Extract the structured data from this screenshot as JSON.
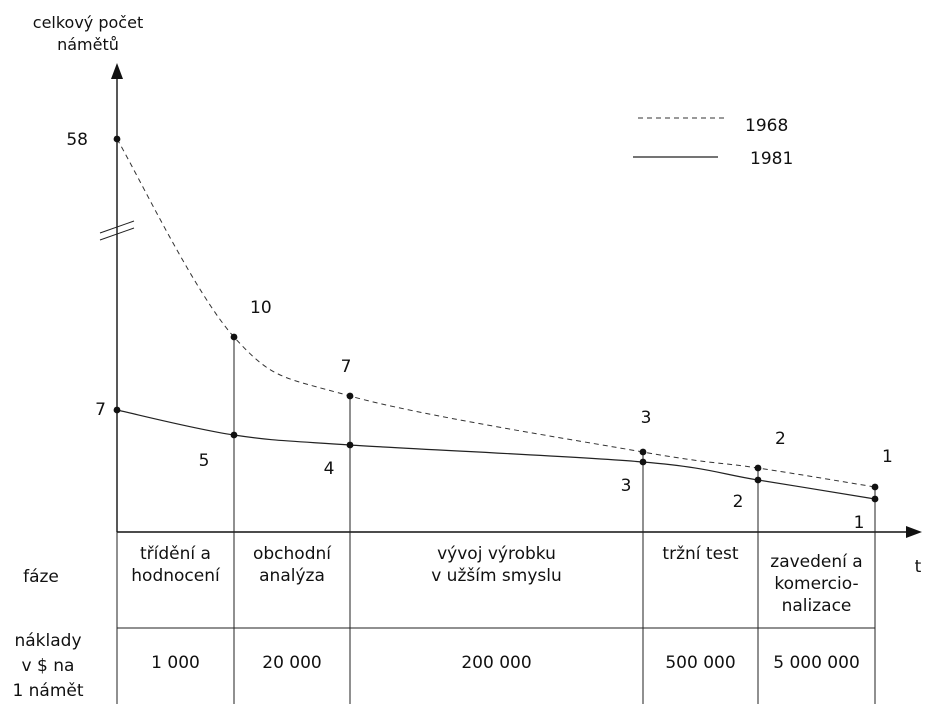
{
  "chart_data": {
    "type": "line",
    "ylabel_lines": [
      "celkový počet",
      "námětů"
    ],
    "xlabel": "t",
    "phase_row_label": "fáze",
    "cost_row_label_lines": [
      "náklady",
      "v $ na",
      "1 námět"
    ],
    "phases": [
      {
        "label_lines": [
          "třídění a",
          "hodnocení"
        ],
        "cost": "1 000"
      },
      {
        "label_lines": [
          "obchodní",
          "analýza"
        ],
        "cost": "20 000"
      },
      {
        "label_lines": [
          "vývoj výrobku",
          "v užším smyslu"
        ],
        "cost": "200 000"
      },
      {
        "label_lines": [
          "tržní test"
        ],
        "cost": "500 000"
      },
      {
        "label_lines": [
          "zavedení a",
          "komercio-",
          "nalizace"
        ],
        "cost": "5 000 000"
      }
    ],
    "series": [
      {
        "name": "1968",
        "style": "dashed",
        "values": [
          58,
          10,
          7,
          3,
          2,
          1
        ]
      },
      {
        "name": "1981",
        "style": "solid",
        "values": [
          7,
          5,
          4,
          3,
          2,
          1
        ]
      }
    ],
    "y_axis_break": true,
    "legend_position": "top-right"
  }
}
